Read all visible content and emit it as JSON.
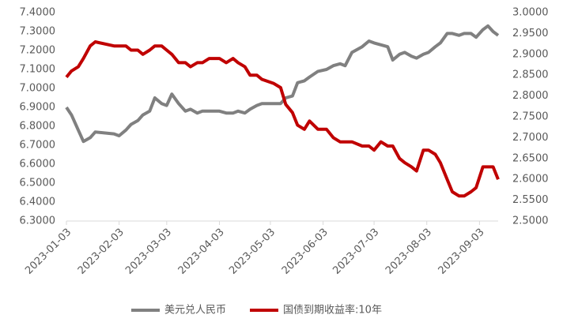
{
  "chart_data": {
    "type": "line",
    "x": [
      "2023-01-03",
      "2023-01-06",
      "2023-01-10",
      "2023-01-13",
      "2023-01-17",
      "2023-01-20",
      "2023-01-31",
      "2023-02-03",
      "2023-02-07",
      "2023-02-10",
      "2023-02-14",
      "2023-02-17",
      "2023-02-21",
      "2023-02-24",
      "2023-02-28",
      "2023-03-03",
      "2023-03-06",
      "2023-03-10",
      "2023-03-14",
      "2023-03-17",
      "2023-03-21",
      "2023-03-24",
      "2023-03-28",
      "2023-04-03",
      "2023-04-07",
      "2023-04-11",
      "2023-04-14",
      "2023-04-18",
      "2023-04-21",
      "2023-04-25",
      "2023-04-28",
      "2023-05-05",
      "2023-05-09",
      "2023-05-12",
      "2023-05-16",
      "2023-05-19",
      "2023-05-23",
      "2023-05-26",
      "2023-05-31",
      "2023-06-05",
      "2023-06-09",
      "2023-06-13",
      "2023-06-16",
      "2023-06-20",
      "2023-06-26",
      "2023-06-30",
      "2023-07-03",
      "2023-07-07",
      "2023-07-11",
      "2023-07-14",
      "2023-07-18",
      "2023-07-21",
      "2023-07-25",
      "2023-07-28",
      "2023-08-01",
      "2023-08-04",
      "2023-08-08",
      "2023-08-11",
      "2023-08-15",
      "2023-08-18",
      "2023-08-22",
      "2023-08-25",
      "2023-08-29",
      "2023-09-01",
      "2023-09-05",
      "2023-09-08",
      "2023-09-11",
      "2023-09-14"
    ],
    "series": [
      {
        "name": "美元兑人民币",
        "color": "#808080",
        "axis": "y",
        "values": [
          6.9,
          6.86,
          6.78,
          6.72,
          6.74,
          6.77,
          6.76,
          6.75,
          6.78,
          6.81,
          6.83,
          6.86,
          6.88,
          6.95,
          6.92,
          6.91,
          6.97,
          6.92,
          6.88,
          6.89,
          6.87,
          6.88,
          6.88,
          6.88,
          6.87,
          6.87,
          6.88,
          6.87,
          6.89,
          6.91,
          6.92,
          6.92,
          6.92,
          6.95,
          6.96,
          7.03,
          7.04,
          7.06,
          7.09,
          7.1,
          7.12,
          7.13,
          7.12,
          7.19,
          7.22,
          7.25,
          7.24,
          7.23,
          7.22,
          7.15,
          7.18,
          7.19,
          7.17,
          7.16,
          7.18,
          7.19,
          7.22,
          7.24,
          7.29,
          7.29,
          7.28,
          7.29,
          7.29,
          7.27,
          7.31,
          7.33,
          7.3,
          7.28
        ]
      },
      {
        "name": "国债到期收益率:10年",
        "color": "#c00000",
        "axis": "y2",
        "values": [
          2.845,
          2.86,
          2.87,
          2.89,
          2.92,
          2.93,
          2.92,
          2.92,
          2.92,
          2.91,
          2.91,
          2.9,
          2.91,
          2.92,
          2.92,
          2.91,
          2.9,
          2.88,
          2.88,
          2.87,
          2.88,
          2.88,
          2.89,
          2.89,
          2.88,
          2.89,
          2.88,
          2.87,
          2.85,
          2.85,
          2.84,
          2.83,
          2.82,
          2.78,
          2.76,
          2.73,
          2.72,
          2.74,
          2.72,
          2.72,
          2.7,
          2.69,
          2.69,
          2.69,
          2.68,
          2.68,
          2.67,
          2.69,
          2.68,
          2.68,
          2.65,
          2.64,
          2.63,
          2.62,
          2.67,
          2.67,
          2.66,
          2.64,
          2.6,
          2.57,
          2.56,
          2.56,
          2.57,
          2.58,
          2.63,
          2.63,
          2.63,
          2.6
        ]
      }
    ],
    "xlim": [
      "2023-01-03",
      "2023-09-14"
    ],
    "xticks": [
      "2023-01-03",
      "2023-02-03",
      "2023-03-03",
      "2023-04-03",
      "2023-05-03",
      "2023-06-03",
      "2023-07-03",
      "2023-08-03",
      "2023-09-03"
    ],
    "ylim": [
      6.3,
      7.4
    ],
    "yticks": [
      {
        "value": 6.3,
        "label": "6.3000"
      },
      {
        "value": 6.4,
        "label": "6.4000"
      },
      {
        "value": 6.5,
        "label": "6.5000"
      },
      {
        "value": 6.6,
        "label": "6.6000"
      },
      {
        "value": 6.7,
        "label": "6.7000"
      },
      {
        "value": 6.8,
        "label": "6.8000"
      },
      {
        "value": 6.9,
        "label": "6.9000"
      },
      {
        "value": 7.0,
        "label": "7.0000"
      },
      {
        "value": 7.1,
        "label": "7.1000"
      },
      {
        "value": 7.2,
        "label": "7.2000"
      },
      {
        "value": 7.3,
        "label": "7.3000"
      },
      {
        "value": 7.4,
        "label": "7.4000"
      }
    ],
    "y2lim": [
      2.5,
      3.0
    ],
    "y2ticks": [
      {
        "value": 2.5,
        "label": "2.5000"
      },
      {
        "value": 2.55,
        "label": "2.5500"
      },
      {
        "value": 2.6,
        "label": "2.6000"
      },
      {
        "value": 2.65,
        "label": "2.6500"
      },
      {
        "value": 2.7,
        "label": "2.7000"
      },
      {
        "value": 2.75,
        "label": "2.7500"
      },
      {
        "value": 2.8,
        "label": "2.8000"
      },
      {
        "value": 2.85,
        "label": "2.8500"
      },
      {
        "value": 2.9,
        "label": "2.9000"
      },
      {
        "value": 2.95,
        "label": "2.9500"
      },
      {
        "value": 3.0,
        "label": "3.0000"
      }
    ],
    "grid": false,
    "legend": "bottom"
  }
}
